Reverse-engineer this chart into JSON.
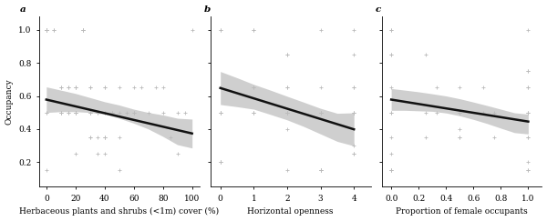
{
  "panel_a": {
    "label": "a",
    "xlabel": "Herbaceous plants and shrubs (<1m) cover (%)",
    "xlim": [
      -5,
      105
    ],
    "xticks": [
      0,
      20,
      40,
      60,
      80,
      100
    ],
    "xticklabels": [
      "0",
      "20",
      "40",
      "60",
      "80",
      "100"
    ],
    "ylim": [
      0.05,
      1.08
    ],
    "yticks": [
      0.2,
      0.4,
      0.6,
      0.8,
      1.0
    ],
    "yticklabels": [
      "0.2",
      "0.4",
      "0.6",
      "0.8",
      "1.0"
    ],
    "scatter_x": [
      0,
      0,
      0,
      0,
      0,
      0,
      0,
      0,
      0,
      0,
      0,
      5,
      5,
      10,
      10,
      10,
      10,
      10,
      15,
      15,
      15,
      15,
      20,
      20,
      20,
      20,
      20,
      20,
      20,
      20,
      20,
      25,
      25,
      25,
      25,
      30,
      30,
      30,
      30,
      30,
      30,
      30,
      35,
      35,
      35,
      35,
      40,
      40,
      40,
      40,
      40,
      40,
      40,
      40,
      45,
      45,
      50,
      50,
      50,
      50,
      55,
      60,
      60,
      60,
      65,
      70,
      75,
      80,
      80,
      85,
      90,
      90,
      95,
      100
    ],
    "scatter_y": [
      1.0,
      1.0,
      1.0,
      1.0,
      1.0,
      1.0,
      1.0,
      1.0,
      0.5,
      0.5,
      0.15,
      1.0,
      1.0,
      0.65,
      0.65,
      0.5,
      0.5,
      0.5,
      0.65,
      0.65,
      0.5,
      0.5,
      0.65,
      0.65,
      0.65,
      0.5,
      0.5,
      0.5,
      0.5,
      0.5,
      0.25,
      1.0,
      1.0,
      1.0,
      1.0,
      0.65,
      0.65,
      0.5,
      0.5,
      0.5,
      0.35,
      0.35,
      0.5,
      0.5,
      0.35,
      0.25,
      0.65,
      0.65,
      0.5,
      0.5,
      0.35,
      0.35,
      0.35,
      0.25,
      0.5,
      0.5,
      0.65,
      0.5,
      0.35,
      0.15,
      0.5,
      0.65,
      0.5,
      0.5,
      0.65,
      0.5,
      0.65,
      0.65,
      0.5,
      0.35,
      0.5,
      0.25,
      0.5,
      1.0
    ],
    "line_x": [
      0,
      100
    ],
    "line_y": [
      0.578,
      0.373
    ],
    "ci_x": [
      0,
      10,
      20,
      30,
      40,
      50,
      60,
      70,
      80,
      90,
      100
    ],
    "ci_upper": [
      0.655,
      0.635,
      0.615,
      0.59,
      0.565,
      0.545,
      0.52,
      0.5,
      0.485,
      0.465,
      0.46
    ],
    "ci_lower": [
      0.5,
      0.505,
      0.505,
      0.5,
      0.49,
      0.465,
      0.435,
      0.4,
      0.355,
      0.305,
      0.285
    ]
  },
  "panel_b": {
    "label": "b",
    "xlabel": "Horizontal openness",
    "xlim": [
      -0.3,
      4.5
    ],
    "xticks": [
      0,
      1,
      2,
      3,
      4
    ],
    "xticklabels": [
      "0",
      "1",
      "2",
      "3",
      "4"
    ],
    "ylim": [
      0.05,
      1.08
    ],
    "yticks": [
      0.2,
      0.4,
      0.6,
      0.8,
      1.0
    ],
    "yticklabels": [
      "0.2",
      "0.4",
      "0.6",
      "0.8",
      "1.0"
    ],
    "scatter_x": [
      0,
      0,
      0,
      0,
      0,
      0,
      0,
      0,
      0,
      0,
      1,
      1,
      1,
      1,
      1,
      1,
      1,
      2,
      2,
      2,
      2,
      2,
      2,
      2,
      2,
      2,
      2,
      3,
      3,
      3,
      3,
      3,
      3,
      3,
      3,
      3,
      3,
      4,
      4,
      4,
      4,
      4,
      4,
      4,
      4,
      4,
      4
    ],
    "scatter_y": [
      1.0,
      1.0,
      0.65,
      0.5,
      0.5,
      0.5,
      0.5,
      0.2,
      0.2,
      0.2,
      1.0,
      1.0,
      0.65,
      0.65,
      0.5,
      0.5,
      0.5,
      0.85,
      0.85,
      0.65,
      0.65,
      0.5,
      0.5,
      0.5,
      0.5,
      0.4,
      0.15,
      1.0,
      0.65,
      0.5,
      0.5,
      0.5,
      0.5,
      0.15,
      0.15,
      0.15,
      0.15,
      1.0,
      0.85,
      0.65,
      0.65,
      0.5,
      0.5,
      0.5,
      0.3,
      0.25,
      0.25
    ],
    "line_x": [
      0,
      4
    ],
    "line_y": [
      0.648,
      0.398
    ],
    "ci_x": [
      0,
      0.5,
      1.0,
      1.5,
      2.0,
      2.5,
      3.0,
      3.5,
      4.0
    ],
    "ci_upper": [
      0.748,
      0.71,
      0.67,
      0.635,
      0.598,
      0.562,
      0.525,
      0.495,
      0.498
    ],
    "ci_lower": [
      0.548,
      0.535,
      0.52,
      0.488,
      0.455,
      0.415,
      0.37,
      0.325,
      0.298
    ]
  },
  "panel_c": {
    "label": "c",
    "xlabel": "Proportion of female occupants",
    "xlim": [
      -0.07,
      1.1
    ],
    "xticks": [
      0.0,
      0.2,
      0.4,
      0.6,
      0.8,
      1.0
    ],
    "xticklabels": [
      "0.0",
      "0.2",
      "0.4",
      "0.6",
      "0.8",
      "1.0"
    ],
    "ylim": [
      0.05,
      1.08
    ],
    "yticks": [
      0.2,
      0.4,
      0.6,
      0.8,
      1.0
    ],
    "yticklabels": [
      "0.2",
      "0.4",
      "0.6",
      "0.8",
      "1.0"
    ],
    "scatter_x": [
      0,
      0,
      0,
      0,
      0,
      0,
      0,
      0,
      0,
      0,
      0,
      0,
      0.25,
      0.25,
      0.25,
      0.33,
      0.33,
      0.5,
      0.5,
      0.5,
      0.5,
      0.5,
      0.5,
      0.5,
      0.5,
      0.67,
      0.67,
      0.75,
      0.75,
      1.0,
      1.0,
      1.0,
      1.0,
      1.0,
      1.0,
      1.0,
      1.0,
      1.0,
      1.0,
      1.0,
      1.0,
      1.0
    ],
    "scatter_y": [
      1.0,
      1.0,
      0.85,
      0.85,
      0.65,
      0.5,
      0.5,
      0.35,
      0.25,
      0.15,
      0.15,
      0.15,
      0.85,
      0.5,
      0.35,
      0.65,
      0.5,
      0.65,
      0.5,
      0.5,
      0.5,
      0.5,
      0.4,
      0.35,
      0.35,
      0.65,
      0.5,
      0.5,
      0.35,
      1.0,
      0.75,
      0.75,
      0.65,
      0.65,
      0.5,
      0.5,
      0.5,
      0.35,
      0.35,
      0.2,
      0.15,
      0.15
    ],
    "line_x": [
      0,
      1.0
    ],
    "line_y": [
      0.578,
      0.445
    ],
    "ci_x": [
      0,
      0.1,
      0.2,
      0.3,
      0.4,
      0.5,
      0.6,
      0.7,
      0.8,
      0.9,
      1.0
    ],
    "ci_upper": [
      0.645,
      0.635,
      0.625,
      0.613,
      0.6,
      0.583,
      0.563,
      0.542,
      0.52,
      0.498,
      0.49
    ],
    "ci_lower": [
      0.513,
      0.513,
      0.51,
      0.507,
      0.497,
      0.48,
      0.458,
      0.433,
      0.405,
      0.378,
      0.37
    ]
  },
  "ylabel": "Occupancy",
  "scatter_color": "#bbbbbb",
  "scatter_marker": "+",
  "scatter_size": 8,
  "scatter_lw": 0.6,
  "line_color": "#111111",
  "line_width": 1.8,
  "ci_color": "#bbbbbb",
  "ci_alpha": 0.7,
  "bg_color": "#ffffff",
  "fontsize_label": 6.5,
  "fontsize_tick": 6.5,
  "fontsize_panel": 7.5,
  "fontfamily": "serif"
}
